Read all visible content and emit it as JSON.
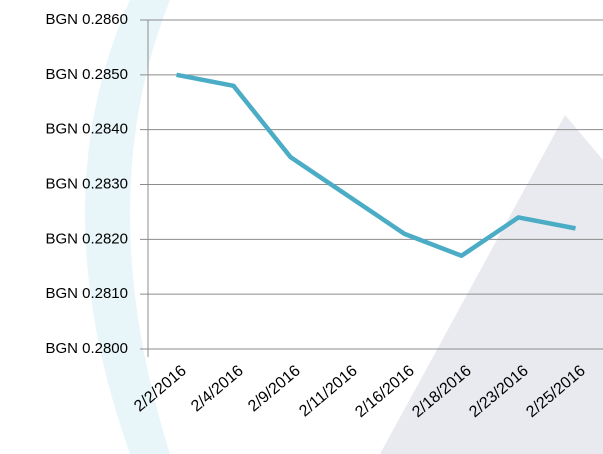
{
  "chart_data": {
    "type": "line",
    "categories": [
      "2/2/2016",
      "2/4/2016",
      "2/9/2016",
      "2/11/2016",
      "2/16/2016",
      "2/18/2016",
      "2/23/2016",
      "2/25/2016"
    ],
    "values": [
      0.285,
      0.2848,
      0.2835,
      0.2828,
      0.2821,
      0.2817,
      0.2824,
      0.2822
    ],
    "color": "#4bacc6",
    "ylim": [
      0.28,
      0.286
    ],
    "yticks": [
      {
        "value": 0.28,
        "label": "BGN 0.2800"
      },
      {
        "value": 0.281,
        "label": "BGN 0.2810"
      },
      {
        "value": 0.282,
        "label": "BGN 0.2820"
      },
      {
        "value": 0.283,
        "label": "BGN 0.2830"
      },
      {
        "value": 0.284,
        "label": "BGN 0.2840"
      },
      {
        "value": 0.285,
        "label": "BGN 0.2850"
      },
      {
        "value": 0.286,
        "label": "BGN 0.2860"
      }
    ],
    "grid": true
  }
}
